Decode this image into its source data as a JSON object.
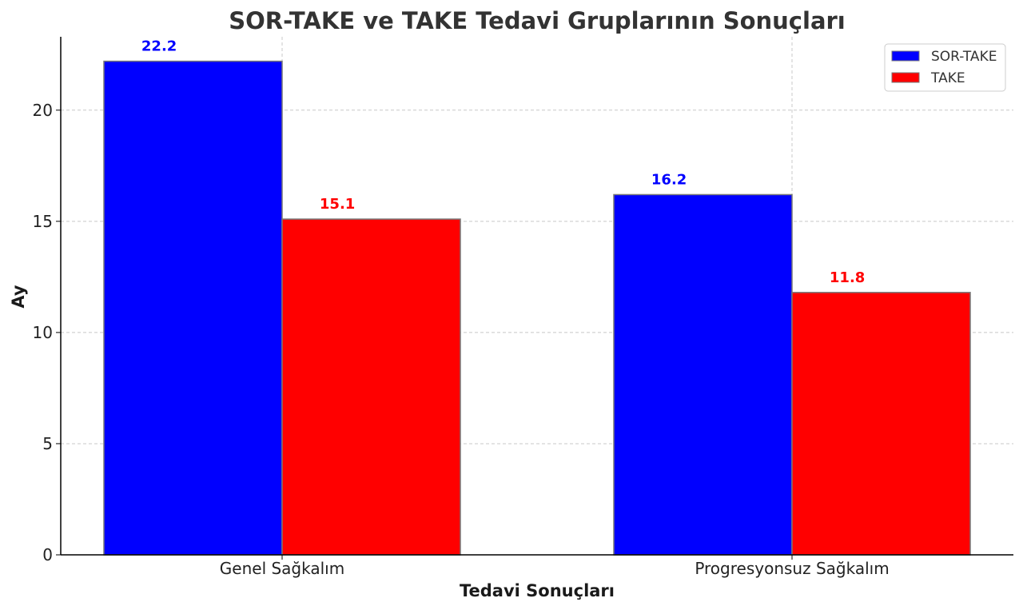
{
  "chart_data": {
    "type": "bar",
    "title": "SOR-TAKE ve TAKE Tedavi Gruplarının Sonuçları",
    "xlabel": "Tedavi Sonuçları",
    "ylabel": "Ay",
    "categories": [
      "Genel Sağkalım",
      "Progresyonsuz Sağkalım"
    ],
    "series": [
      {
        "name": "SOR-TAKE",
        "color": "#0000ff",
        "values": [
          22.2,
          16.2
        ],
        "labels": [
          "22.2",
          "16.2"
        ]
      },
      {
        "name": "TAKE",
        "color": "#ff0000",
        "values": [
          15.1,
          11.8
        ],
        "labels": [
          "15.1",
          "11.8"
        ]
      }
    ],
    "ylim": [
      0,
      23.3
    ],
    "yticks": [
      0,
      5,
      10,
      15,
      20
    ],
    "ytick_labels": [
      "0",
      "5",
      "10",
      "15",
      "20"
    ],
    "grid": true,
    "legend_position": "top-right"
  }
}
